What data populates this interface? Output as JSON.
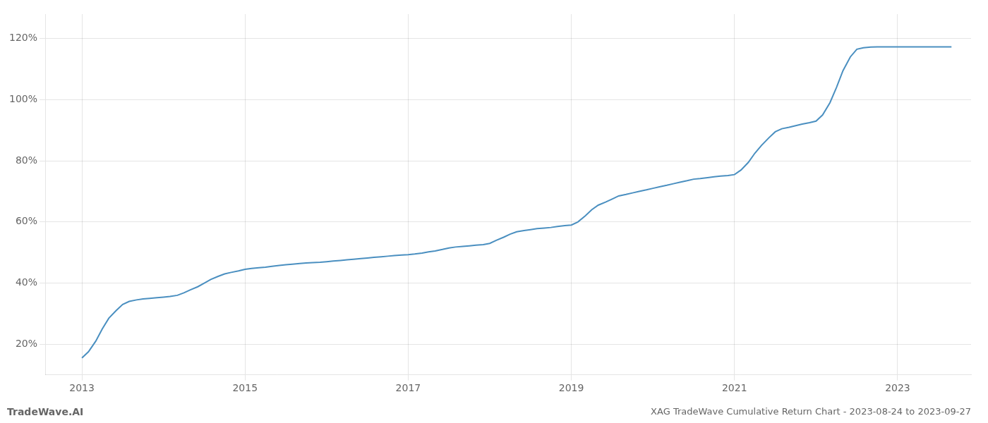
{
  "chart_data": {
    "type": "line",
    "title": "XAG TradeWave Cumulative Return Chart - 2023-08-24 to 2023-09-27",
    "annotations": [
      "TradeWave.AI"
    ],
    "color": "#4a8fc0",
    "x": [
      2013.0,
      2013.08,
      2013.17,
      2013.25,
      2013.33,
      2013.42,
      2013.5,
      2013.58,
      2013.67,
      2013.75,
      2013.83,
      2013.92,
      2014.0,
      2014.08,
      2014.17,
      2014.25,
      2014.33,
      2014.42,
      2014.5,
      2014.58,
      2014.67,
      2014.75,
      2014.83,
      2014.92,
      2015.0,
      2015.08,
      2015.17,
      2015.25,
      2015.33,
      2015.42,
      2015.5,
      2015.58,
      2015.67,
      2015.75,
      2015.83,
      2015.92,
      2016.0,
      2016.08,
      2016.17,
      2016.25,
      2016.33,
      2016.42,
      2016.5,
      2016.58,
      2016.67,
      2016.75,
      2016.83,
      2016.92,
      2017.0,
      2017.08,
      2017.17,
      2017.25,
      2017.33,
      2017.42,
      2017.5,
      2017.58,
      2017.67,
      2017.75,
      2017.83,
      2017.92,
      2018.0,
      2018.08,
      2018.17,
      2018.25,
      2018.33,
      2018.42,
      2018.5,
      2018.58,
      2018.67,
      2018.75,
      2018.83,
      2018.92,
      2019.0,
      2019.08,
      2019.17,
      2019.25,
      2019.33,
      2019.42,
      2019.5,
      2019.58,
      2019.67,
      2019.75,
      2019.83,
      2019.92,
      2020.0,
      2020.08,
      2020.17,
      2020.25,
      2020.33,
      2020.42,
      2020.5,
      2020.58,
      2020.67,
      2020.75,
      2020.83,
      2020.92,
      2021.0,
      2021.08,
      2021.17,
      2021.25,
      2021.33,
      2021.42,
      2021.5,
      2021.58,
      2021.67,
      2021.75,
      2021.83,
      2021.92,
      2022.0,
      2022.08,
      2022.17,
      2022.25,
      2022.33,
      2022.42,
      2022.5,
      2022.58,
      2022.67,
      2022.75,
      2022.83,
      2022.92,
      2023.0,
      2023.08,
      2023.17,
      2023.25,
      2023.33,
      2023.42,
      2023.5,
      2023.58,
      2023.66
    ],
    "values": [
      15.5,
      17.5,
      21.0,
      25.0,
      28.5,
      31.0,
      33.0,
      34.0,
      34.5,
      34.8,
      35.0,
      35.2,
      35.4,
      35.6,
      36.0,
      36.8,
      37.8,
      38.8,
      40.0,
      41.2,
      42.2,
      43.0,
      43.5,
      44.0,
      44.5,
      44.8,
      45.0,
      45.2,
      45.5,
      45.8,
      46.0,
      46.2,
      46.4,
      46.6,
      46.7,
      46.8,
      47.0,
      47.2,
      47.4,
      47.6,
      47.8,
      48.0,
      48.2,
      48.4,
      48.6,
      48.8,
      49.0,
      49.2,
      49.3,
      49.5,
      49.8,
      50.2,
      50.5,
      51.0,
      51.5,
      51.8,
      52.0,
      52.2,
      52.4,
      52.6,
      53.0,
      54.0,
      55.0,
      56.0,
      56.8,
      57.2,
      57.5,
      57.8,
      58.0,
      58.2,
      58.5,
      58.8,
      59.0,
      60.0,
      62.0,
      64.0,
      65.5,
      66.5,
      67.5,
      68.5,
      69.0,
      69.5,
      70.0,
      70.5,
      71.0,
      71.5,
      72.0,
      72.5,
      73.0,
      73.5,
      74.0,
      74.2,
      74.5,
      74.8,
      75.0,
      75.2,
      75.5,
      77.0,
      79.5,
      82.5,
      85.0,
      87.5,
      89.5,
      90.5,
      91.0,
      91.5,
      92.0,
      92.5,
      93.0,
      95.0,
      99.0,
      104.0,
      109.5,
      114.0,
      116.5,
      117.0,
      117.2,
      117.3,
      117.3,
      117.3,
      117.3,
      117.3,
      117.3,
      117.3,
      117.3,
      117.3,
      117.3,
      117.3,
      117.3
    ],
    "xlim": [
      2012.55,
      2023.9
    ],
    "ylim": [
      10,
      128
    ],
    "xticks": [
      2013,
      2015,
      2017,
      2019,
      2021,
      2023
    ],
    "yticks": [
      {
        "value": 20,
        "label": "20%"
      },
      {
        "value": 40,
        "label": "40%"
      },
      {
        "value": 60,
        "label": "60%"
      },
      {
        "value": 80,
        "label": "80%"
      },
      {
        "value": 100,
        "label": "100%"
      },
      {
        "value": 120,
        "label": "120%"
      }
    ],
    "grid": true
  }
}
